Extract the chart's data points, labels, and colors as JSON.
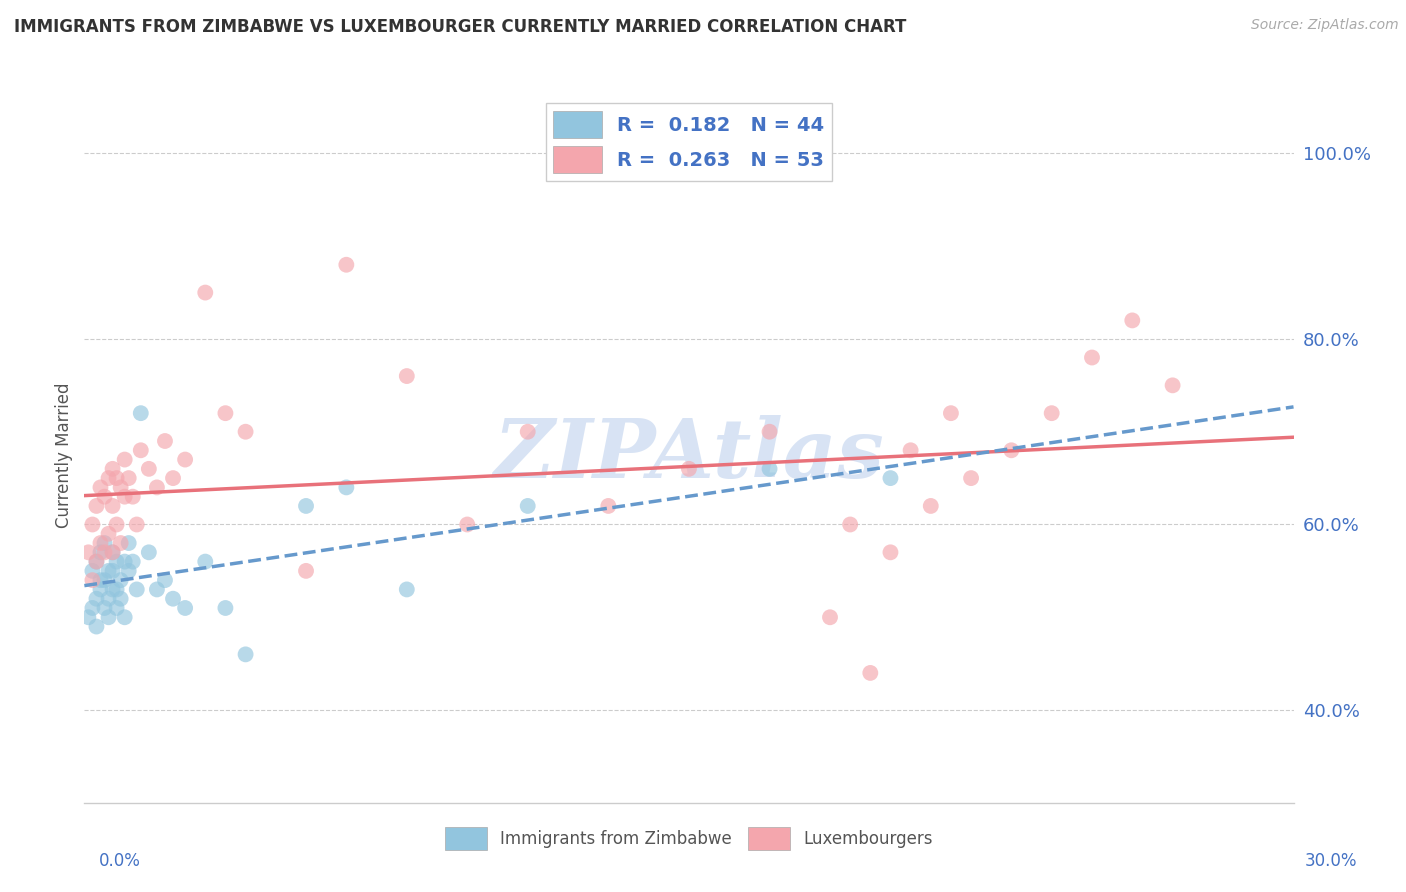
{
  "title": "IMMIGRANTS FROM ZIMBABWE VS LUXEMBOURGER CURRENTLY MARRIED CORRELATION CHART",
  "source": "Source: ZipAtlas.com",
  "ylabel": "Currently Married",
  "xlim": [
    0.0,
    0.3
  ],
  "ylim": [
    0.3,
    1.05
  ],
  "y_ticks": [
    0.4,
    0.6,
    0.8,
    1.0
  ],
  "y_tick_labels": [
    "40.0%",
    "60.0%",
    "80.0%",
    "100.0%"
  ],
  "legend_label_blue": "R =  0.182   N = 44",
  "legend_label_pink": "R =  0.263   N = 53",
  "blue_scatter_color": "#92c5de",
  "pink_scatter_color": "#f4a6ad",
  "blue_line_color": "#6699cc",
  "pink_line_color": "#e8717a",
  "tick_label_color": "#4472c4",
  "watermark_color": "#c8d8f0",
  "blue_points_x": [
    0.001,
    0.002,
    0.002,
    0.003,
    0.003,
    0.003,
    0.004,
    0.004,
    0.004,
    0.005,
    0.005,
    0.005,
    0.006,
    0.006,
    0.006,
    0.007,
    0.007,
    0.007,
    0.008,
    0.008,
    0.008,
    0.009,
    0.009,
    0.01,
    0.01,
    0.011,
    0.011,
    0.012,
    0.013,
    0.014,
    0.016,
    0.018,
    0.02,
    0.022,
    0.025,
    0.03,
    0.035,
    0.04,
    0.055,
    0.065,
    0.08,
    0.11,
    0.17,
    0.2
  ],
  "blue_points_y": [
    0.5,
    0.55,
    0.51,
    0.52,
    0.56,
    0.49,
    0.54,
    0.57,
    0.53,
    0.51,
    0.58,
    0.54,
    0.55,
    0.5,
    0.52,
    0.53,
    0.57,
    0.55,
    0.51,
    0.53,
    0.56,
    0.54,
    0.52,
    0.56,
    0.5,
    0.55,
    0.58,
    0.56,
    0.53,
    0.72,
    0.57,
    0.53,
    0.54,
    0.52,
    0.51,
    0.56,
    0.51,
    0.46,
    0.62,
    0.64,
    0.53,
    0.62,
    0.66,
    0.65
  ],
  "pink_points_x": [
    0.001,
    0.002,
    0.002,
    0.003,
    0.003,
    0.004,
    0.004,
    0.005,
    0.005,
    0.006,
    0.006,
    0.007,
    0.007,
    0.007,
    0.008,
    0.008,
    0.009,
    0.009,
    0.01,
    0.01,
    0.011,
    0.012,
    0.013,
    0.014,
    0.016,
    0.018,
    0.02,
    0.022,
    0.025,
    0.03,
    0.035,
    0.04,
    0.055,
    0.065,
    0.08,
    0.095,
    0.11,
    0.13,
    0.15,
    0.17,
    0.19,
    0.2,
    0.21,
    0.22,
    0.23,
    0.24,
    0.25,
    0.26,
    0.27,
    0.185,
    0.195,
    0.205,
    0.215
  ],
  "pink_points_y": [
    0.57,
    0.54,
    0.6,
    0.56,
    0.62,
    0.58,
    0.64,
    0.57,
    0.63,
    0.59,
    0.65,
    0.57,
    0.62,
    0.66,
    0.6,
    0.65,
    0.58,
    0.64,
    0.63,
    0.67,
    0.65,
    0.63,
    0.6,
    0.68,
    0.66,
    0.64,
    0.69,
    0.65,
    0.67,
    0.85,
    0.72,
    0.7,
    0.55,
    0.88,
    0.76,
    0.6,
    0.7,
    0.62,
    0.66,
    0.7,
    0.6,
    0.57,
    0.62,
    0.65,
    0.68,
    0.72,
    0.78,
    0.82,
    0.75,
    0.5,
    0.44,
    0.68,
    0.72
  ]
}
